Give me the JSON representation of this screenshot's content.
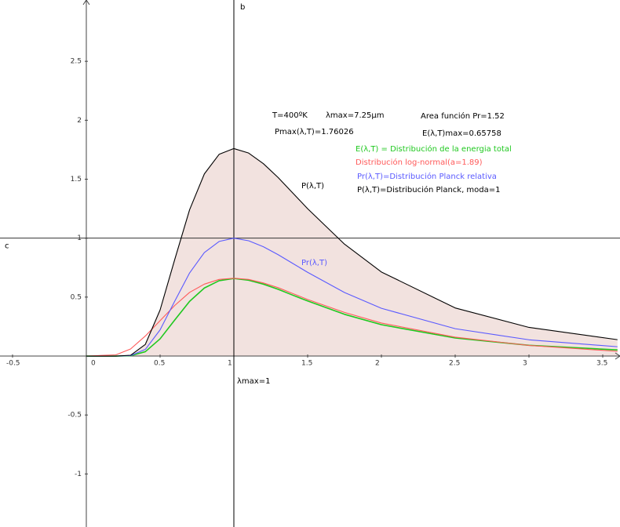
{
  "chart_data": {
    "type": "line",
    "x": [
      0,
      0.2,
      0.3,
      0.4,
      0.5,
      0.6,
      0.7,
      0.8,
      0.9,
      1,
      1.1,
      1.2,
      1.3,
      1.4,
      1.5,
      1.75,
      2,
      2.5,
      3,
      3.6
    ],
    "series": [
      {
        "name": "E(λ,T) = Distribución de la energia total",
        "color": "#1fc81f",
        "values": [
          0,
          0,
          0.0025,
          0.037,
          0.146,
          0.307,
          0.464,
          0.577,
          0.639,
          0.658,
          0.643,
          0.61,
          0.566,
          0.516,
          0.467,
          0.354,
          0.266,
          0.153,
          0.091,
          0.052
        ]
      },
      {
        "name": "Distribución log-normal(a=1.89)",
        "color": "#ff5a5a",
        "values": [
          0,
          0.01,
          0.06,
          0.17,
          0.3,
          0.43,
          0.54,
          0.61,
          0.65,
          0.66,
          0.65,
          0.62,
          0.58,
          0.53,
          0.48,
          0.37,
          0.28,
          0.16,
          0.09,
          0.04
        ]
      },
      {
        "name": "Pr(λ,T)=Distribución Planck relativa",
        "color": "#5a5aff",
        "values": [
          0,
          0,
          0.0038,
          0.0565,
          0.222,
          0.467,
          0.705,
          0.878,
          0.972,
          1,
          0.978,
          0.927,
          0.86,
          0.785,
          0.71,
          0.539,
          0.405,
          0.232,
          0.138,
          0.079
        ]
      },
      {
        "name": "P(λ,T)=Distribución Planck, moda=1",
        "color": "#000000",
        "fill": "#f2e2df",
        "values": [
          0,
          0,
          0.0067,
          0.099,
          0.391,
          0.822,
          1.241,
          1.545,
          1.711,
          1.76,
          1.722,
          1.632,
          1.514,
          1.382,
          1.25,
          0.949,
          0.713,
          0.408,
          0.243,
          0.139
        ]
      }
    ],
    "xlim": [
      -0.585,
      3.617
    ],
    "ylim": [
      -1.45,
      3.02
    ],
    "xticks": [
      -0.5,
      0,
      0.5,
      1,
      1.5,
      2,
      2.5,
      3,
      3.5
    ],
    "yticks": [
      -1,
      -0.5,
      0,
      0.5,
      1,
      1.5,
      2,
      2.5
    ],
    "vline": {
      "x": 1,
      "label": "b",
      "foot_label": "λmax=1"
    },
    "hline": {
      "y": 1,
      "label": "c"
    },
    "info": [
      "T=400ºK",
      "λmax=7.25µm",
      "Area función Pr=1.52",
      "Pmax(λ,T)=1.76026",
      "E(λ,T)max=0.65758"
    ],
    "curve_labels": [
      "P(λ,T)",
      "Pr(λ,T)"
    ]
  }
}
